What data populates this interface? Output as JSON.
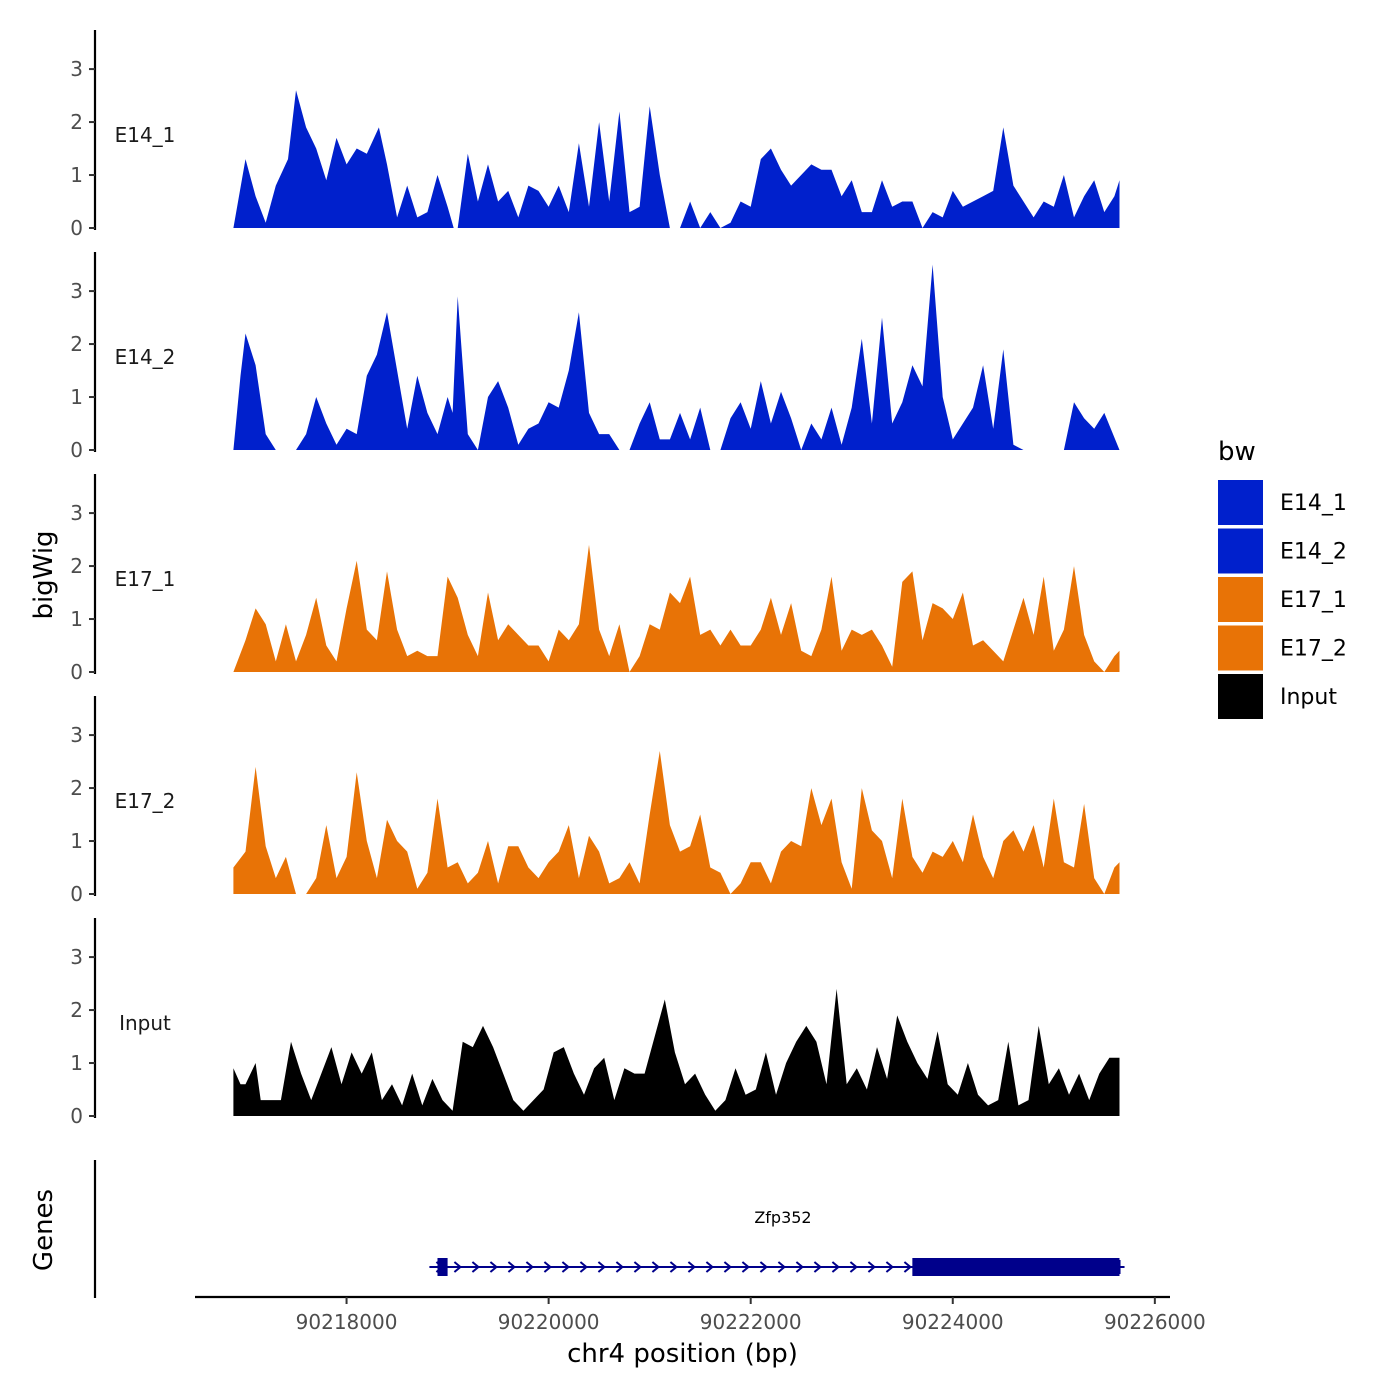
{
  "chart_data": {
    "type": "area",
    "title": "",
    "xlabel": "chr4 position (bp)",
    "ylabel": "bigWig",
    "genes_label": "Genes",
    "xlim": [
      90216500,
      90226150
    ],
    "ylim": [
      0,
      3.7
    ],
    "x_ticks": [
      90218000,
      90220000,
      90222000,
      90224000,
      90226000
    ],
    "x_tick_labels": [
      "90218000",
      "90220000",
      "90222000",
      "90224000",
      "90226000"
    ],
    "y_ticks": [
      0,
      1,
      2,
      3
    ],
    "y_tick_labels": [
      "0",
      "1",
      "2",
      "3"
    ],
    "legend": {
      "title": "bw",
      "position": "right",
      "entries": [
        {
          "label": "E14_1",
          "color": "#0020CC"
        },
        {
          "label": "E14_2",
          "color": "#0020CC"
        },
        {
          "label": "E17_1",
          "color": "#E87306"
        },
        {
          "label": "E17_2",
          "color": "#E87306"
        },
        {
          "label": "Input",
          "color": "#000000"
        }
      ]
    },
    "series": [
      {
        "name": "E14_1",
        "color": "#0020CC",
        "x": [
          90216880,
          90217000,
          90217100,
          90217200,
          90217300,
          90217420,
          90217500,
          90217600,
          90217700,
          90217800,
          90217900,
          90218000,
          90218100,
          90218200,
          90218320,
          90218400,
          90218500,
          90218600,
          90218700,
          90218800,
          90218900,
          90219000,
          90219060,
          90219100,
          90219200,
          90219300,
          90219400,
          90219500,
          90219600,
          90219700,
          90219800,
          90219900,
          90220000,
          90220100,
          90220200,
          90220300,
          90220400,
          90220500,
          90220600,
          90220700,
          90220800,
          90220900,
          90221000,
          90221100,
          90221200,
          90221300,
          90221400,
          90221500,
          90221600,
          90221700,
          90221800,
          90221900,
          90222000,
          90222100,
          90222200,
          90222300,
          90222400,
          90222500,
          90222600,
          90222700,
          90222800,
          90222900,
          90223000,
          90223100,
          90223200,
          90223300,
          90223400,
          90223500,
          90223600,
          90223700,
          90223800,
          90223900,
          90224000,
          90224100,
          90224200,
          90224300,
          90224400,
          90224500,
          90224600,
          90224700,
          90224800,
          90224900,
          90225000,
          90225100,
          90225200,
          90225300,
          90225400,
          90225500,
          90225600,
          90225650
        ],
        "y": [
          0,
          1.3,
          0.6,
          0.1,
          0.8,
          1.3,
          2.6,
          1.9,
          1.5,
          0.9,
          1.7,
          1.2,
          1.5,
          1.4,
          1.9,
          1.2,
          0.2,
          0.8,
          0.2,
          0.3,
          1.0,
          0.4,
          0,
          0,
          1.4,
          0.5,
          1.2,
          0.5,
          0.7,
          0.2,
          0.8,
          0.7,
          0.4,
          0.8,
          0.3,
          1.6,
          0.4,
          2.0,
          0.5,
          2.2,
          0.3,
          0.4,
          2.3,
          1.0,
          0,
          0,
          0.5,
          0,
          0.3,
          0,
          0.1,
          0.5,
          0.4,
          1.3,
          1.5,
          1.1,
          0.8,
          1.0,
          1.2,
          1.1,
          1.1,
          0.6,
          0.9,
          0.3,
          0.3,
          0.9,
          0.4,
          0.5,
          0.5,
          0,
          0.3,
          0.2,
          0.7,
          0.4,
          0.5,
          0.6,
          0.7,
          1.9,
          0.8,
          0.5,
          0.2,
          0.5,
          0.4,
          1.0,
          0.2,
          0.6,
          0.9,
          0.3,
          0.6,
          0.9
        ]
      },
      {
        "name": "E14_2",
        "color": "#0020CC",
        "x": [
          90216880,
          90216950,
          90217000,
          90217100,
          90217200,
          90217300,
          90217400,
          90217500,
          90217600,
          90217700,
          90217800,
          90217900,
          90218000,
          90218100,
          90218200,
          90218300,
          90218400,
          90218500,
          90218600,
          90218700,
          90218800,
          90218900,
          90219000,
          90219050,
          90219100,
          90219200,
          90219300,
          90219400,
          90219500,
          90219600,
          90219700,
          90219800,
          90219900,
          90220000,
          90220100,
          90220200,
          90220300,
          90220400,
          90220500,
          90220600,
          90220700,
          90220800,
          90220900,
          90221000,
          90221100,
          90221200,
          90221300,
          90221400,
          90221500,
          90221600,
          90221700,
          90221800,
          90221900,
          90222000,
          90222100,
          90222200,
          90222300,
          90222400,
          90222500,
          90222600,
          90222700,
          90222800,
          90222900,
          90223000,
          90223100,
          90223200,
          90223300,
          90223400,
          90223500,
          90223600,
          90223700,
          90223800,
          90223900,
          90224000,
          90224100,
          90224200,
          90224300,
          90224400,
          90224500,
          90224600,
          90224700,
          90224800,
          90224900,
          90225000,
          90225100,
          90225200,
          90225300,
          90225400,
          90225500,
          90225650
        ],
        "y": [
          0,
          1.4,
          2.2,
          1.6,
          0.3,
          0,
          0,
          0,
          0.3,
          1.0,
          0.5,
          0.1,
          0.4,
          0.3,
          1.4,
          1.8,
          2.6,
          1.5,
          0.4,
          1.4,
          0.7,
          0.3,
          1.0,
          0.7,
          2.9,
          0.3,
          0,
          1.0,
          1.3,
          0.8,
          0.1,
          0.4,
          0.5,
          0.9,
          0.8,
          1.5,
          2.6,
          0.7,
          0.3,
          0.3,
          0,
          0,
          0.5,
          0.9,
          0.2,
          0.2,
          0.7,
          0.2,
          0.8,
          0,
          0,
          0.6,
          0.9,
          0.4,
          1.3,
          0.5,
          1.1,
          0.6,
          0,
          0.5,
          0.2,
          0.8,
          0.1,
          0.8,
          2.1,
          0.5,
          2.5,
          0.5,
          0.9,
          1.6,
          1.2,
          3.5,
          1.0,
          0.2,
          0.5,
          0.8,
          1.6,
          0.4,
          1.9,
          0.1,
          0,
          0,
          0,
          0,
          0,
          0.9,
          0.6,
          0.4,
          0.7,
          0
        ]
      },
      {
        "name": "E17_1",
        "color": "#E87306",
        "x": [
          90216880,
          90217000,
          90217100,
          90217200,
          90217300,
          90217400,
          90217500,
          90217600,
          90217700,
          90217800,
          90217900,
          90218000,
          90218100,
          90218200,
          90218300,
          90218400,
          90218500,
          90218600,
          90218700,
          90218800,
          90218900,
          90219000,
          90219100,
          90219200,
          90219300,
          90219400,
          90219500,
          90219600,
          90219700,
          90219800,
          90219900,
          90220000,
          90220100,
          90220200,
          90220300,
          90220400,
          90220500,
          90220600,
          90220700,
          90220800,
          90220900,
          90221000,
          90221100,
          90221200,
          90221300,
          90221400,
          90221500,
          90221600,
          90221700,
          90221800,
          90221900,
          90222000,
          90222100,
          90222200,
          90222300,
          90222400,
          90222500,
          90222600,
          90222700,
          90222800,
          90222900,
          90223000,
          90223100,
          90223200,
          90223300,
          90223400,
          90223500,
          90223600,
          90223700,
          90223800,
          90223900,
          90224000,
          90224100,
          90224200,
          90224300,
          90224400,
          90224500,
          90224600,
          90224700,
          90224800,
          90224900,
          90225000,
          90225100,
          90225200,
          90225300,
          90225400,
          90225500,
          90225600,
          90225650
        ],
        "y": [
          0,
          0.6,
          1.2,
          0.9,
          0.2,
          0.9,
          0.2,
          0.7,
          1.4,
          0.5,
          0.2,
          1.2,
          2.1,
          0.8,
          0.6,
          1.9,
          0.8,
          0.3,
          0.4,
          0.3,
          0.3,
          1.8,
          1.4,
          0.7,
          0.3,
          1.5,
          0.6,
          0.9,
          0.7,
          0.5,
          0.5,
          0.2,
          0.8,
          0.6,
          0.9,
          2.4,
          0.8,
          0.3,
          0.9,
          0,
          0.3,
          0.9,
          0.8,
          1.5,
          1.3,
          1.8,
          0.7,
          0.8,
          0.5,
          0.8,
          0.5,
          0.5,
          0.8,
          1.4,
          0.7,
          1.3,
          0.4,
          0.3,
          0.8,
          1.8,
          0.4,
          0.8,
          0.7,
          0.8,
          0.5,
          0.1,
          1.7,
          1.9,
          0.6,
          1.3,
          1.2,
          1.0,
          1.5,
          0.5,
          0.6,
          0.4,
          0.2,
          0.8,
          1.4,
          0.7,
          1.8,
          0.4,
          0.8,
          2.0,
          0.7,
          0.2,
          0,
          0.3,
          0.4
        ]
      },
      {
        "name": "E17_2",
        "color": "#E87306",
        "x": [
          90216880,
          90217000,
          90217100,
          90217200,
          90217300,
          90217400,
          90217500,
          90217600,
          90217700,
          90217800,
          90217900,
          90218000,
          90218100,
          90218200,
          90218300,
          90218400,
          90218500,
          90218600,
          90218700,
          90218800,
          90218900,
          90219000,
          90219100,
          90219200,
          90219300,
          90219400,
          90219500,
          90219600,
          90219700,
          90219800,
          90219900,
          90220000,
          90220100,
          90220200,
          90220300,
          90220400,
          90220500,
          90220600,
          90220700,
          90220800,
          90220900,
          90221000,
          90221100,
          90221200,
          90221300,
          90221400,
          90221500,
          90221600,
          90221700,
          90221800,
          90221900,
          90222000,
          90222100,
          90222200,
          90222300,
          90222400,
          90222500,
          90222600,
          90222700,
          90222800,
          90222900,
          90223000,
          90223100,
          90223200,
          90223300,
          90223400,
          90223500,
          90223600,
          90223700,
          90223800,
          90223900,
          90224000,
          90224100,
          90224200,
          90224300,
          90224400,
          90224500,
          90224600,
          90224700,
          90224800,
          90224900,
          90225000,
          90225100,
          90225200,
          90225300,
          90225400,
          90225500,
          90225600,
          90225650
        ],
        "y": [
          0.5,
          0.8,
          2.4,
          0.9,
          0.3,
          0.7,
          0,
          0,
          0.3,
          1.3,
          0.3,
          0.7,
          2.3,
          1.0,
          0.3,
          1.4,
          1.0,
          0.8,
          0.1,
          0.4,
          1.8,
          0.5,
          0.6,
          0.2,
          0.4,
          1.0,
          0.2,
          0.9,
          0.9,
          0.5,
          0.3,
          0.6,
          0.8,
          1.3,
          0.3,
          1.1,
          0.8,
          0.2,
          0.3,
          0.6,
          0.2,
          1.5,
          2.7,
          1.3,
          0.8,
          0.9,
          1.5,
          0.5,
          0.4,
          0,
          0.2,
          0.6,
          0.6,
          0.2,
          0.8,
          1.0,
          0.9,
          2.0,
          1.3,
          1.8,
          0.6,
          0.1,
          2.0,
          1.2,
          1.0,
          0.3,
          1.8,
          0.7,
          0.4,
          0.8,
          0.7,
          1.0,
          0.6,
          1.5,
          0.7,
          0.3,
          1.0,
          1.2,
          0.8,
          1.3,
          0.5,
          1.8,
          0.6,
          0.5,
          1.7,
          0.3,
          0,
          0.5,
          0.6
        ]
      },
      {
        "name": "Input",
        "color": "#000000",
        "x": [
          90216880,
          90216950,
          90217000,
          90217100,
          90217150,
          90217250,
          90217350,
          90217450,
          90217550,
          90217650,
          90217750,
          90217850,
          90217950,
          90218050,
          90218150,
          90218250,
          90218350,
          90218450,
          90218550,
          90218650,
          90218750,
          90218850,
          90218950,
          90219050,
          90219150,
          90219250,
          90219350,
          90219450,
          90219550,
          90219650,
          90219750,
          90219850,
          90219950,
          90220050,
          90220150,
          90220250,
          90220350,
          90220450,
          90220550,
          90220650,
          90220750,
          90220850,
          90220950,
          90221050,
          90221150,
          90221250,
          90221350,
          90221450,
          90221550,
          90221650,
          90221750,
          90221850,
          90221950,
          90222050,
          90222150,
          90222250,
          90222350,
          90222450,
          90222550,
          90222650,
          90222750,
          90222850,
          90222950,
          90223050,
          90223150,
          90223250,
          90223350,
          90223450,
          90223550,
          90223650,
          90223750,
          90223850,
          90223950,
          90224050,
          90224150,
          90224250,
          90224350,
          90224450,
          90224550,
          90224650,
          90224750,
          90224850,
          90224950,
          90225050,
          90225150,
          90225250,
          90225350,
          90225450,
          90225550,
          90225650
        ],
        "y": [
          0.9,
          0.6,
          0.6,
          1.0,
          0.3,
          0.3,
          0.3,
          1.4,
          0.8,
          0.3,
          0.8,
          1.3,
          0.6,
          1.2,
          0.8,
          1.2,
          0.3,
          0.6,
          0.2,
          0.8,
          0.2,
          0.7,
          0.3,
          0.1,
          1.4,
          1.3,
          1.7,
          1.3,
          0.8,
          0.3,
          0.1,
          0.3,
          0.5,
          1.2,
          1.3,
          0.8,
          0.4,
          0.9,
          1.1,
          0.3,
          0.9,
          0.8,
          0.8,
          1.5,
          2.2,
          1.2,
          0.6,
          0.8,
          0.4,
          0.1,
          0.3,
          0.9,
          0.4,
          0.5,
          1.2,
          0.4,
          1.0,
          1.4,
          1.7,
          1.4,
          0.6,
          2.4,
          0.6,
          0.9,
          0.5,
          1.3,
          0.7,
          1.9,
          1.4,
          1.0,
          0.7,
          1.6,
          0.6,
          0.4,
          1.0,
          0.4,
          0.2,
          0.3,
          1.4,
          0.2,
          0.3,
          1.7,
          0.6,
          0.9,
          0.4,
          0.8,
          0.3,
          0.8,
          1.1,
          1.1
        ]
      }
    ],
    "genes": [
      {
        "name": "Zfp352",
        "strand": "+",
        "start": 90218820,
        "end": 90225700,
        "blocks": [
          [
            90218900,
            90219000
          ],
          [
            90223600,
            90225650
          ]
        ],
        "thin_blocks": [
          [
            90225250,
            90225700
          ]
        ]
      }
    ]
  }
}
